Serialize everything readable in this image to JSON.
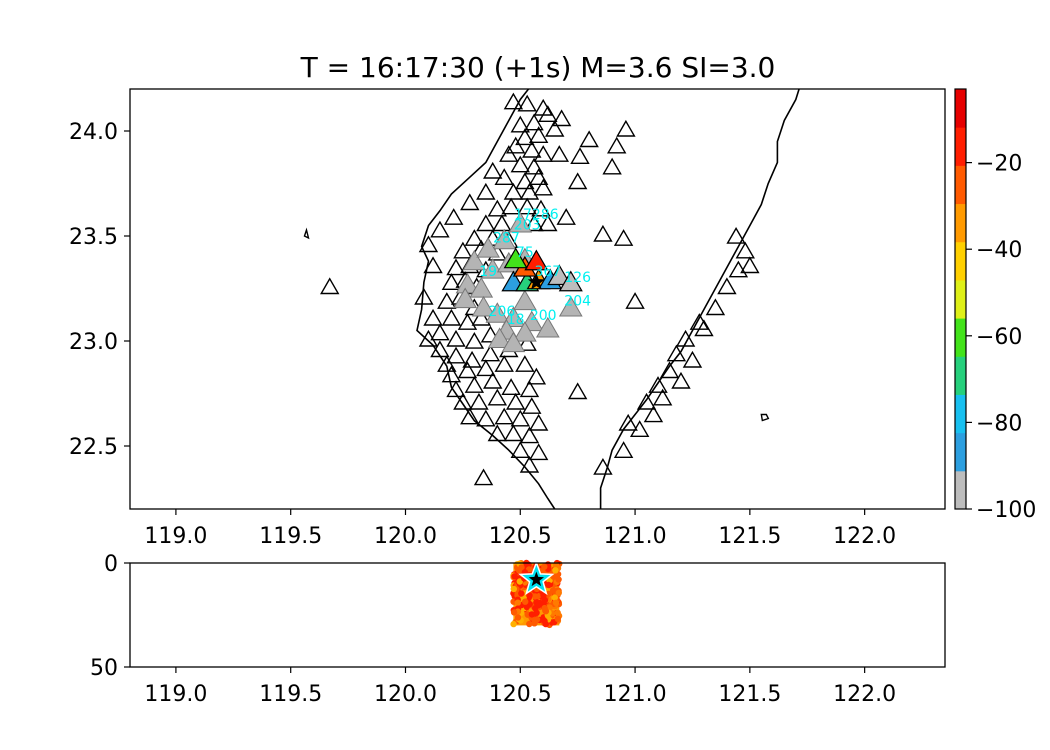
{
  "chart_data": [
    {
      "type": "scatter",
      "role": "map",
      "title": "T = 16:17:30 (+1s) M=3.6 SI=3.0",
      "xlabel": "",
      "ylabel": "",
      "xlim": [
        118.8,
        122.35
      ],
      "ylim": [
        22.2,
        24.2
      ],
      "xticks": [
        "119.0",
        "119.5",
        "120.0",
        "120.5",
        "121.0",
        "121.5",
        "122.0"
      ],
      "yticks": [
        "22.5",
        "23.0",
        "23.5",
        "24.0"
      ],
      "epicenter": {
        "lon": 120.57,
        "lat": 23.28
      },
      "colorbar": {
        "range": [
          -100,
          -3
        ],
        "ticks": [
          "−20",
          "−40",
          "−60",
          "−80",
          "−100"
        ],
        "colors": [
          "#bdbdbd",
          "#2c9fe0",
          "#18c0f0",
          "#26d07c",
          "#43e31b",
          "#dff018",
          "#ffd000",
          "#ff9a00",
          "#ff5a00",
          "#ff1e00",
          "#e60000"
        ]
      },
      "stations_idle": [
        [
          119.67,
          23.25
        ],
        [
          120.47,
          24.13
        ],
        [
          120.53,
          24.12
        ],
        [
          120.6,
          24.1
        ],
        [
          120.5,
          24.02
        ],
        [
          120.56,
          24.03
        ],
        [
          120.62,
          24.07
        ],
        [
          120.52,
          23.96
        ],
        [
          120.58,
          23.97
        ],
        [
          120.48,
          23.92
        ],
        [
          120.55,
          23.9
        ],
        [
          120.45,
          23.88
        ],
        [
          120.6,
          23.88
        ],
        [
          120.5,
          23.83
        ],
        [
          120.56,
          23.82
        ],
        [
          120.43,
          23.77
        ],
        [
          120.52,
          23.75
        ],
        [
          120.58,
          23.77
        ],
        [
          120.47,
          23.7
        ],
        [
          120.54,
          23.7
        ],
        [
          120.6,
          23.72
        ],
        [
          120.4,
          23.62
        ],
        [
          120.46,
          23.63
        ],
        [
          120.53,
          23.63
        ],
        [
          120.59,
          23.62
        ],
        [
          120.35,
          23.55
        ],
        [
          120.42,
          23.55
        ],
        [
          120.5,
          23.56
        ],
        [
          120.56,
          23.55
        ],
        [
          120.3,
          23.48
        ],
        [
          120.38,
          23.48
        ],
        [
          120.45,
          23.47
        ],
        [
          120.25,
          23.42
        ],
        [
          120.33,
          23.43
        ],
        [
          120.4,
          23.41
        ],
        [
          120.22,
          23.34
        ],
        [
          120.28,
          23.35
        ],
        [
          120.35,
          23.33
        ],
        [
          120.2,
          23.27
        ],
        [
          120.26,
          23.28
        ],
        [
          120.31,
          23.25
        ],
        [
          120.18,
          23.18
        ],
        [
          120.24,
          23.2
        ],
        [
          120.3,
          23.15
        ],
        [
          120.2,
          23.1
        ],
        [
          120.27,
          23.08
        ],
        [
          120.33,
          23.1
        ],
        [
          120.15,
          23.03
        ],
        [
          120.22,
          23.0
        ],
        [
          120.3,
          22.99
        ],
        [
          120.37,
          23.02
        ],
        [
          120.15,
          22.95
        ],
        [
          120.22,
          22.92
        ],
        [
          120.29,
          22.9
        ],
        [
          120.37,
          22.93
        ],
        [
          120.45,
          22.95
        ],
        [
          120.53,
          22.98
        ],
        [
          120.2,
          22.83
        ],
        [
          120.27,
          22.85
        ],
        [
          120.35,
          22.86
        ],
        [
          120.43,
          22.88
        ],
        [
          120.52,
          22.88
        ],
        [
          120.57,
          22.82
        ],
        [
          120.22,
          22.76
        ],
        [
          120.3,
          22.78
        ],
        [
          120.38,
          22.8
        ],
        [
          120.46,
          22.77
        ],
        [
          120.54,
          22.76
        ],
        [
          120.25,
          22.7
        ],
        [
          120.32,
          22.7
        ],
        [
          120.4,
          22.72
        ],
        [
          120.48,
          22.7
        ],
        [
          120.55,
          22.68
        ],
        [
          120.28,
          22.63
        ],
        [
          120.35,
          22.62
        ],
        [
          120.43,
          22.63
        ],
        [
          120.5,
          22.62
        ],
        [
          120.58,
          22.6
        ],
        [
          120.4,
          22.55
        ],
        [
          120.47,
          22.55
        ],
        [
          120.54,
          22.54
        ],
        [
          120.5,
          22.47
        ],
        [
          120.58,
          22.46
        ],
        [
          120.54,
          22.4
        ],
        [
          120.34,
          22.34
        ],
        [
          120.75,
          22.75
        ],
        [
          120.86,
          22.39
        ],
        [
          120.95,
          22.47
        ],
        [
          120.97,
          22.6
        ],
        [
          121.02,
          22.57
        ],
        [
          121.05,
          22.7
        ],
        [
          121.1,
          22.78
        ],
        [
          121.15,
          22.85
        ],
        [
          121.18,
          22.93
        ],
        [
          121.22,
          23.0
        ],
        [
          121.28,
          23.08
        ],
        [
          121.35,
          23.15
        ],
        [
          121.4,
          23.25
        ],
        [
          121.45,
          23.33
        ],
        [
          121.48,
          23.42
        ],
        [
          121.44,
          23.49
        ],
        [
          121.5,
          23.35
        ],
        [
          121.3,
          23.05
        ],
        [
          121.25,
          22.9
        ],
        [
          121.12,
          22.72
        ],
        [
          121.2,
          22.8
        ],
        [
          121.08,
          22.64
        ],
        [
          120.86,
          23.5
        ],
        [
          120.95,
          23.48
        ],
        [
          121.0,
          23.18
        ],
        [
          120.7,
          23.58
        ],
        [
          120.62,
          23.55
        ],
        [
          120.67,
          23.88
        ],
        [
          120.76,
          23.87
        ],
        [
          120.8,
          23.95
        ],
        [
          120.9,
          23.82
        ],
        [
          120.96,
          24.0
        ],
        [
          120.92,
          23.92
        ],
        [
          120.75,
          23.75
        ],
        [
          120.65,
          24.0
        ],
        [
          120.68,
          24.05
        ],
        [
          120.38,
          23.8
        ],
        [
          120.35,
          23.7
        ],
        [
          120.28,
          23.65
        ],
        [
          120.21,
          23.58
        ],
        [
          120.15,
          23.52
        ],
        [
          120.1,
          23.45
        ],
        [
          120.12,
          23.35
        ],
        [
          120.08,
          23.2
        ],
        [
          120.12,
          23.1
        ],
        [
          120.1,
          23.0
        ],
        [
          120.18,
          22.88
        ]
      ],
      "stations_gray": [
        [
          120.3,
          23.37
        ],
        [
          120.38,
          23.33
        ],
        [
          120.45,
          23.36
        ],
        [
          120.52,
          23.38
        ],
        [
          120.27,
          23.26
        ],
        [
          120.33,
          23.24
        ],
        [
          120.26,
          23.19
        ],
        [
          120.34,
          23.15
        ],
        [
          120.4,
          23.12
        ],
        [
          120.47,
          23.1
        ],
        [
          120.55,
          23.08
        ],
        [
          120.44,
          23.04
        ],
        [
          120.52,
          23.03
        ],
        [
          120.41,
          23.0
        ],
        [
          120.47,
          22.98
        ],
        [
          120.62,
          23.05
        ],
        [
          120.72,
          23.15
        ],
        [
          120.43,
          23.47
        ],
        [
          120.36,
          23.43
        ],
        [
          120.52,
          23.18
        ],
        [
          120.5,
          23.55
        ]
      ],
      "stations_active": [
        {
          "lon": 120.47,
          "lat": 23.27,
          "value": -88
        },
        {
          "lon": 120.53,
          "lat": 23.27,
          "value": -70
        },
        {
          "lon": 120.58,
          "lat": 23.28,
          "value": -38
        },
        {
          "lon": 120.63,
          "lat": 23.28,
          "value": -85
        },
        {
          "lon": 120.67,
          "lat": 23.3,
          "value": -95
        },
        {
          "lon": 120.72,
          "lat": 23.27,
          "value": -100
        },
        {
          "lon": 120.52,
          "lat": 23.34,
          "value": -22
        },
        {
          "lon": 120.57,
          "lat": 23.37,
          "value": -15
        },
        {
          "lon": 120.48,
          "lat": 23.38,
          "value": -60
        }
      ],
      "station_labels": [
        {
          "lon": 120.57,
          "lat": 23.58,
          "text": "17286"
        },
        {
          "lon": 120.53,
          "lat": 23.53,
          "text": "203"
        },
        {
          "lon": 120.44,
          "lat": 23.47,
          "text": "287"
        },
        {
          "lon": 120.52,
          "lat": 23.4,
          "text": "75"
        },
        {
          "lon": 120.36,
          "lat": 23.31,
          "text": "19"
        },
        {
          "lon": 120.62,
          "lat": 23.31,
          "text": "367"
        },
        {
          "lon": 120.75,
          "lat": 23.28,
          "text": "126"
        },
        {
          "lon": 120.75,
          "lat": 23.17,
          "text": "204"
        },
        {
          "lon": 120.42,
          "lat": 23.12,
          "text": "206"
        },
        {
          "lon": 120.6,
          "lat": 23.1,
          "text": "200"
        },
        {
          "lon": 120.48,
          "lat": 23.08,
          "text": "18"
        }
      ]
    },
    {
      "type": "scatter",
      "role": "depth-section",
      "xlim": [
        118.8,
        122.35
      ],
      "ylim": [
        50,
        0
      ],
      "xticks": [
        "119.0",
        "119.5",
        "120.0",
        "120.5",
        "121.0",
        "121.5",
        "122.0"
      ],
      "yticks": [
        "0",
        "50"
      ],
      "hypocenter": {
        "lon": 120.57,
        "depth": 8
      },
      "grid_search_region": {
        "lon": [
          120.47,
          120.67
        ],
        "depth": [
          0,
          30
        ]
      }
    }
  ]
}
